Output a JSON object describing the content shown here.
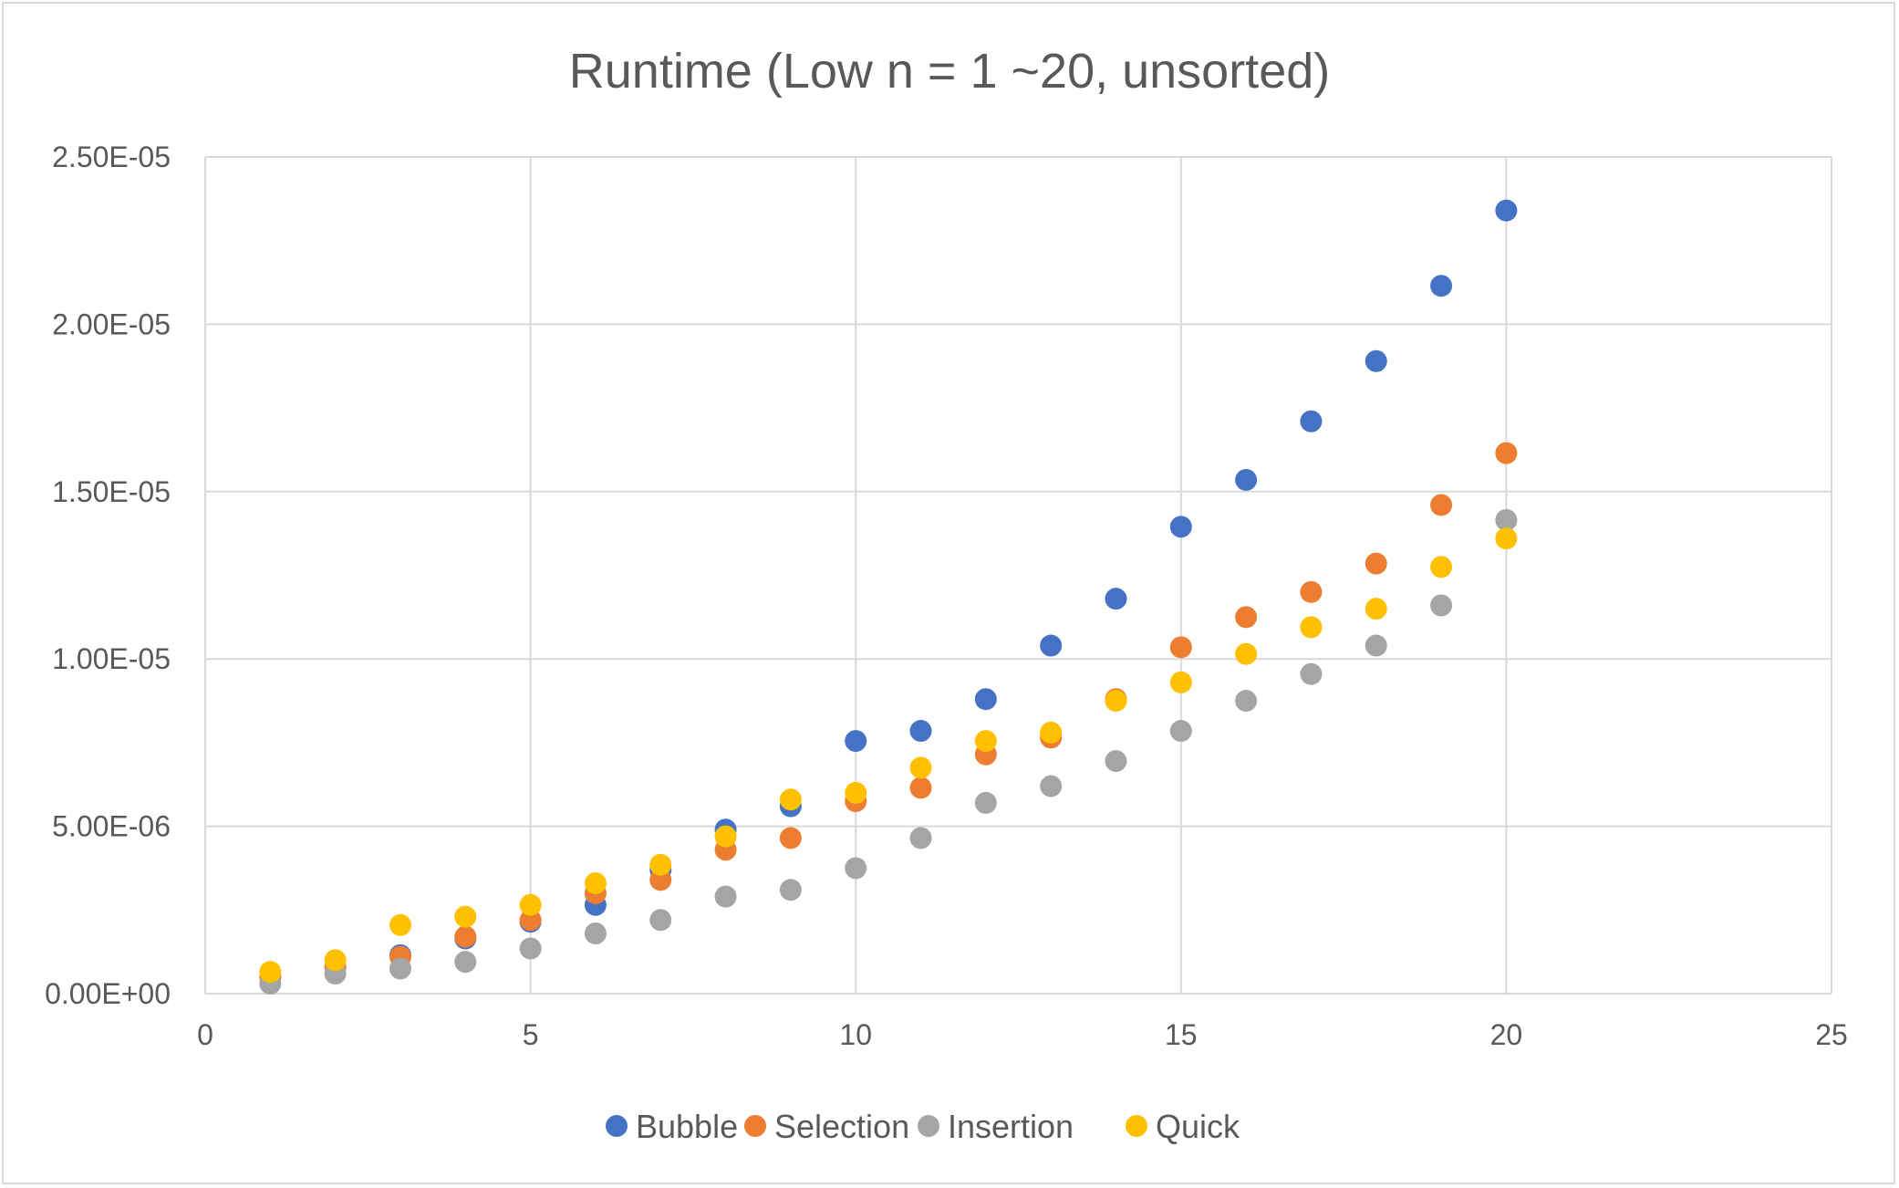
{
  "chart_data": {
    "type": "scatter",
    "title": "Runtime (Low n = 1 ~20, unsorted)",
    "xlabel": "",
    "ylabel": "",
    "xlim": [
      0,
      25
    ],
    "ylim": [
      0,
      2.5e-05
    ],
    "x_ticks": [
      0,
      5,
      10,
      15,
      20,
      25
    ],
    "x_tick_labels": [
      "0",
      "5",
      "10",
      "15",
      "20",
      "25"
    ],
    "y_ticks": [
      0,
      5e-06,
      1e-05,
      1.5e-05,
      2e-05,
      2.5e-05
    ],
    "y_tick_labels": [
      "0.00E+00",
      "5.00E-06",
      "1.00E-05",
      "1.50E-05",
      "2.00E-05",
      "2.50E-05"
    ],
    "grid": true,
    "legend_position": "bottom",
    "x": [
      1,
      2,
      3,
      4,
      5,
      6,
      7,
      8,
      9,
      10,
      11,
      12,
      13,
      14,
      15,
      16,
      17,
      18,
      19,
      20
    ],
    "series": [
      {
        "name": "Bubble",
        "color": "#4472C4",
        "values": [
          5e-07,
          8e-07,
          1.15e-06,
          1.65e-06,
          2.15e-06,
          2.65e-06,
          3.7e-06,
          4.9e-06,
          5.6e-06,
          7.55e-06,
          7.85e-06,
          8.8e-06,
          1.04e-05,
          1.18e-05,
          1.395e-05,
          1.535e-05,
          1.71e-05,
          1.89e-05,
          2.115e-05,
          2.34e-05
        ]
      },
      {
        "name": "Selection",
        "color": "#ED7D31",
        "values": [
          5e-07,
          8e-07,
          1.1e-06,
          1.7e-06,
          2.2e-06,
          3e-06,
          3.4e-06,
          4.3e-06,
          4.65e-06,
          5.75e-06,
          6.15e-06,
          7.15e-06,
          7.65e-06,
          8.8e-06,
          1.035e-05,
          1.125e-05,
          1.2e-05,
          1.285e-05,
          1.46e-05,
          1.615e-05
        ]
      },
      {
        "name": "Insertion",
        "color": "#A5A5A5",
        "values": [
          3e-07,
          6e-07,
          7.5e-07,
          9.5e-07,
          1.35e-06,
          1.8e-06,
          2.2e-06,
          2.9e-06,
          3.1e-06,
          3.75e-06,
          4.65e-06,
          5.7e-06,
          6.2e-06,
          6.95e-06,
          7.85e-06,
          8.75e-06,
          9.55e-06,
          1.04e-05,
          1.16e-05,
          1.415e-05
        ]
      },
      {
        "name": "Quick",
        "color": "#FFC000",
        "values": [
          6.5e-07,
          1e-06,
          2.05e-06,
          2.3e-06,
          2.65e-06,
          3.3e-06,
          3.85e-06,
          4.7e-06,
          5.8e-06,
          6e-06,
          6.75e-06,
          7.55e-06,
          7.8e-06,
          8.75e-06,
          9.3e-06,
          1.015e-05,
          1.095e-05,
          1.15e-05,
          1.275e-05,
          1.36e-05
        ]
      }
    ]
  }
}
